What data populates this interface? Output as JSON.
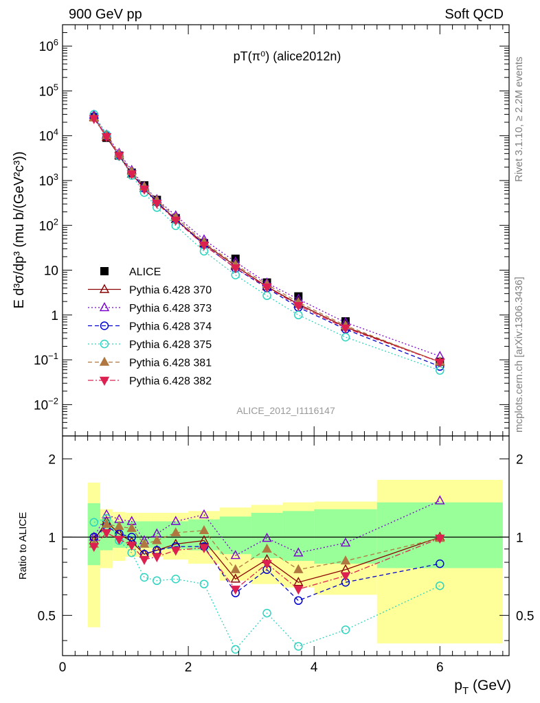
{
  "header": {
    "left": "900 GeV pp",
    "right": "Soft QCD"
  },
  "side_labels": {
    "rivet": "Rivet 3.1.10, ≥ 2.2M events",
    "mcplots": "mcplots.cern.ch [arXiv:1306.3436]"
  },
  "chart_data": [
    {
      "type": "scatter",
      "title": "pT(π⁰) (alice2012n)",
      "annotation": "ALICE_2012_I1116147",
      "ylabel": "E d³σ/dp³ (mu b/(GeV²c³))",
      "yscale": "log",
      "ylim": [
        0.002,
        3000000
      ],
      "xlim": [
        0,
        7.1
      ],
      "x_ticks": [
        "0",
        "2",
        "4",
        "6"
      ],
      "y_ticks": [
        "10^-2",
        "10^-1",
        "1",
        "10",
        "10^2",
        "10^3",
        "10^4",
        "10^5",
        "10^6"
      ],
      "x": [
        0.5,
        0.7,
        0.9,
        1.1,
        1.3,
        1.5,
        1.8,
        2.25,
        2.75,
        3.25,
        3.75,
        4.5,
        6.0
      ],
      "legend_position": "middle-left",
      "series": [
        {
          "name": "ALICE",
          "color": "#000000",
          "marker": "square-filled",
          "values": [
            26000,
            9000,
            3600,
            1500,
            780,
            370,
            145,
            40,
            18,
            5.3,
            2.6,
            0.72,
            0.09
          ]
        },
        {
          "name": "Pythia 6.428 370",
          "color": "#8b0000",
          "marker": "triangle-up-open",
          "line": "solid",
          "values": [
            26000,
            9200,
            3600,
            1400,
            670,
            330,
            135,
            39,
            12.4,
            4.3,
            1.75,
            0.54,
            0.09
          ]
        },
        {
          "name": "Pythia 6.428 373",
          "color": "#7b00d0",
          "marker": "triangle-up-open",
          "line": "dotted",
          "values": [
            29000,
            10500,
            4100,
            1700,
            750,
            380,
            165,
            48,
            15.3,
            5.2,
            2.25,
            0.68,
            0.12
          ]
        },
        {
          "name": "Pythia 6.428 374",
          "color": "#0000d0",
          "marker": "circle-open",
          "line": "dashed",
          "values": [
            26000,
            9800,
            3700,
            1500,
            670,
            330,
            135,
            37,
            11.0,
            4.0,
            1.48,
            0.48,
            0.071
          ]
        },
        {
          "name": "Pythia 6.428 375",
          "color": "#2ad4c0",
          "marker": "circle-open",
          "line": "dotted",
          "values": [
            30000,
            10600,
            3500,
            1300,
            540,
            250,
            98,
            26.5,
            7.8,
            2.7,
            1.0,
            0.32,
            0.058
          ]
        },
        {
          "name": "Pythia 6.428 381",
          "color": "#b07840",
          "marker": "triangle-up-filled",
          "line": "dashed",
          "values": [
            25000,
            10000,
            3900,
            1600,
            730,
            360,
            150,
            42,
            13.3,
            4.8,
            1.92,
            0.58,
            0.089
          ]
        },
        {
          "name": "Pythia 6.428 382",
          "color": "#dc2050",
          "marker": "triangle-down-filled",
          "line": "dashdot",
          "values": [
            24000,
            9500,
            3600,
            1400,
            640,
            310,
            130,
            36,
            11.2,
            4.2,
            1.62,
            0.51,
            0.089
          ]
        }
      ]
    },
    {
      "type": "scatter",
      "ylabel": "Ratio to ALICE",
      "xlabel": "p_T (GeV)",
      "ylim": [
        0.35,
        2.45
      ],
      "xlim": [
        0,
        7.1
      ],
      "x_ticks": [
        "0",
        "2",
        "4",
        "6"
      ],
      "y_ticks": [
        "0.5",
        "1",
        "2"
      ],
      "reference_line": 1,
      "x": [
        0.5,
        0.7,
        0.9,
        1.1,
        1.3,
        1.5,
        1.8,
        2.25,
        2.75,
        3.25,
        3.75,
        4.5,
        6.0
      ],
      "bands": {
        "edges": [
          0.4,
          0.6,
          0.8,
          1.0,
          1.2,
          1.4,
          1.6,
          2.0,
          2.5,
          3.0,
          3.5,
          4.0,
          5.0,
          7.0
        ],
        "yellow_lo": [
          0.45,
          0.76,
          0.81,
          0.84,
          0.84,
          0.84,
          0.82,
          0.79,
          0.68,
          0.66,
          0.64,
          0.6,
          0.39
        ],
        "yellow_hi": [
          1.62,
          1.28,
          1.25,
          1.24,
          1.24,
          1.24,
          1.24,
          1.26,
          1.3,
          1.33,
          1.36,
          1.37,
          1.66
        ],
        "green_lo": [
          0.78,
          0.89,
          0.91,
          0.91,
          0.91,
          0.91,
          0.9,
          0.89,
          0.86,
          0.83,
          0.81,
          0.79,
          0.76
        ],
        "green_hi": [
          1.35,
          1.17,
          1.15,
          1.15,
          1.15,
          1.15,
          1.15,
          1.17,
          1.2,
          1.24,
          1.26,
          1.28,
          1.36
        ]
      },
      "series": [
        {
          "name": "Pythia 6.428 370",
          "color": "#8b0000",
          "marker": "triangle-up-open",
          "line": "solid",
          "values": [
            0.97,
            1.15,
            1.03,
            0.96,
            0.86,
            0.89,
            0.94,
            0.97,
            0.69,
            0.82,
            0.67,
            0.75,
            1.0
          ]
        },
        {
          "name": "Pythia 6.428 373",
          "color": "#7b00d0",
          "marker": "triangle-up-open",
          "line": "dotted",
          "values": [
            1.0,
            1.22,
            1.17,
            1.15,
            0.97,
            1.03,
            1.15,
            1.22,
            0.85,
            0.99,
            0.87,
            0.95,
            1.38
          ]
        },
        {
          "name": "Pythia 6.428 374",
          "color": "#0000d0",
          "marker": "circle-open",
          "line": "dashed",
          "values": [
            1.0,
            1.1,
            1.03,
            1.0,
            0.86,
            0.89,
            0.92,
            0.92,
            0.61,
            0.75,
            0.57,
            0.67,
            0.79
          ]
        },
        {
          "name": "Pythia 6.428 375",
          "color": "#2ad4c0",
          "marker": "circle-open",
          "line": "dotted",
          "values": [
            1.14,
            1.18,
            0.97,
            0.87,
            0.7,
            0.68,
            0.69,
            0.66,
            0.37,
            0.51,
            0.38,
            0.44,
            0.65
          ]
        },
        {
          "name": "Pythia 6.428 381",
          "color": "#b07840",
          "marker": "triangle-up-filled",
          "line": "dashed",
          "values": [
            0.94,
            1.12,
            1.1,
            1.08,
            0.94,
            0.97,
            1.04,
            1.06,
            0.75,
            0.9,
            0.75,
            0.81,
            0.99
          ]
        },
        {
          "name": "Pythia 6.428 382",
          "color": "#dc2050",
          "marker": "triangle-down-filled",
          "line": "dashdot",
          "values": [
            0.92,
            1.04,
            0.98,
            0.93,
            0.82,
            0.84,
            0.89,
            0.91,
            0.63,
            0.79,
            0.63,
            0.71,
            0.99
          ]
        }
      ]
    }
  ]
}
